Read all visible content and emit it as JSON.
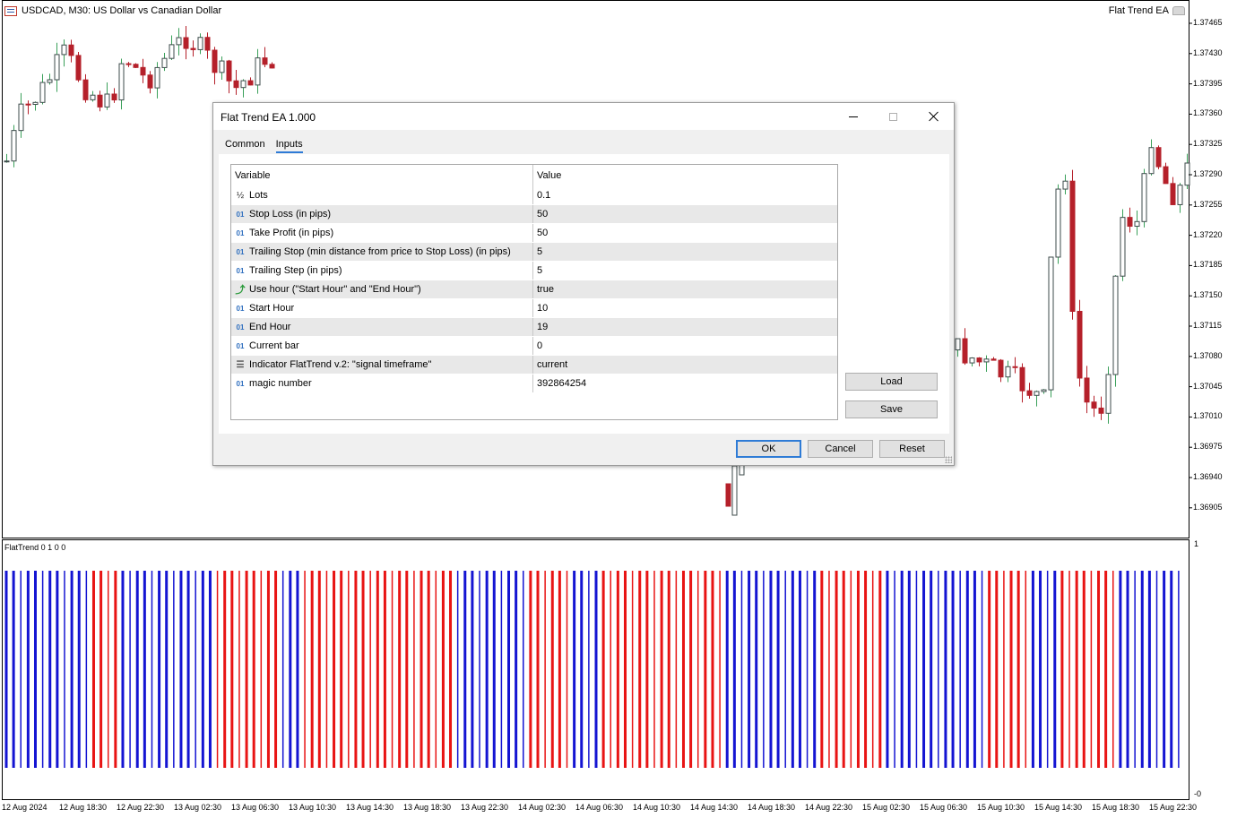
{
  "chart": {
    "symbol_title": "USDCAD, M30:  US Dollar vs Canadian Dollar",
    "ea_name": "Flat Trend EA",
    "price_labels": [
      "1.37465",
      "1.37430",
      "1.37395",
      "1.37360",
      "1.37325",
      "1.37290",
      "1.37255",
      "1.37220",
      "1.37185",
      "1.37150",
      "1.37115",
      "1.37080",
      "1.37045",
      "1.37010",
      "1.36975",
      "1.36940",
      "1.36905"
    ],
    "time_labels": [
      "12 Aug 2024",
      "12 Aug 18:30",
      "12 Aug 22:30",
      "13 Aug 02:30",
      "13 Aug 06:30",
      "13 Aug 10:30",
      "13 Aug 14:30",
      "13 Aug 18:30",
      "13 Aug 22:30",
      "14 Aug 02:30",
      "14 Aug 06:30",
      "14 Aug 10:30",
      "14 Aug 14:30",
      "14 Aug 18:30",
      "14 Aug 22:30",
      "15 Aug 02:30",
      "15 Aug 06:30",
      "15 Aug 10:30",
      "15 Aug 14:30",
      "15 Aug 18:30",
      "15 Aug 22:30"
    ],
    "indicator_title": "FlatTrend 0 1 0 0",
    "indicator_scale_top": "1",
    "indicator_scale_bottom": "-0",
    "colors": {
      "bull": "#3d4b4b",
      "bear": "#b5202a",
      "ind_up": "#1414d2",
      "ind_down": "#e81414"
    }
  },
  "dialog": {
    "title": "Flat Trend EA 1.000",
    "tabs": [
      "Common",
      "Inputs"
    ],
    "active_tab": "Inputs",
    "table": {
      "headers": [
        "Variable",
        "Value"
      ],
      "rows": [
        {
          "icon": "½",
          "variable": "Lots",
          "value": "0.1"
        },
        {
          "icon": "01",
          "variable": "Stop Loss (in pips)",
          "value": "50"
        },
        {
          "icon": "01",
          "variable": "Take Profit (in pips)",
          "value": "50"
        },
        {
          "icon": "01",
          "variable": "Trailing Stop (min distance from price to Stop Loss) (in pips)",
          "value": "5"
        },
        {
          "icon": "01",
          "variable": "Trailing Step (in pips)",
          "value": "5"
        },
        {
          "icon": "⤴",
          "variable": "Use hour (\"Start Hour\" and \"End Hour\")",
          "value": "true"
        },
        {
          "icon": "01",
          "variable": "Start Hour",
          "value": "10"
        },
        {
          "icon": "01",
          "variable": "End Hour",
          "value": "19"
        },
        {
          "icon": "01",
          "variable": "Current bar",
          "value": "0"
        },
        {
          "icon": "☰",
          "variable": "Indicator FlatTrend v.2: \"signal timeframe\"",
          "value": "current"
        },
        {
          "icon": "01",
          "variable": "magic number",
          "value": "392864254"
        }
      ]
    },
    "buttons": {
      "load": "Load",
      "save": "Save",
      "ok": "OK",
      "cancel": "Cancel",
      "reset": "Reset"
    }
  }
}
